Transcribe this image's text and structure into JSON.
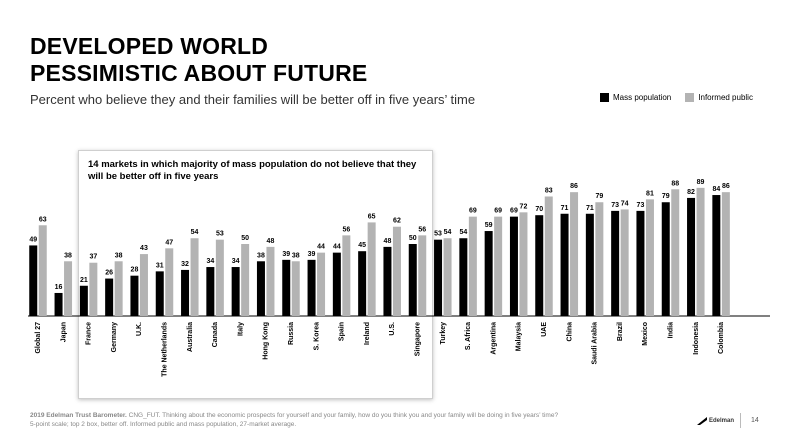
{
  "slide": {
    "title_line1": "DEVELOPED WORLD",
    "title_line2": "PESSIMISTIC ABOUT FUTURE",
    "subtitle": "Percent who believe they and their families will be better off in five years’ time",
    "callout": "14 markets in which majority of mass population do not believe that they will be better off in five years",
    "footer_source_bold": "2019 Edelman Trust Barometer.",
    "footer_source_text": " CNG_FUT. Thinking about the economic prospects for yourself and your family, how do you think you and your family will be doing in five years’ time?",
    "footer_line2": "5-point scale; top 2 box, better off. Informed public and mass population, 27-market average.",
    "brand": "Edelman",
    "page_number": "14"
  },
  "colors": {
    "mass": "#000000",
    "informed": "#b3b3b3"
  },
  "chart_data": {
    "type": "bar",
    "title": "Percent who believe they and their families will be better off in five years’ time",
    "xlabel": "",
    "ylabel": "",
    "ylim": [
      0,
      100
    ],
    "grid": false,
    "legend": "top-right",
    "categories": [
      "Global 27",
      "Japan",
      "France",
      "Germany",
      "U.K.",
      "The Netherlands",
      "Australia",
      "Canada",
      "Italy",
      "Hong Kong",
      "Russia",
      "S. Korea",
      "Spain",
      "Ireland",
      "U.S.",
      "Singapore",
      "Turkey",
      "S. Africa",
      "Argentina",
      "Malaysia",
      "UAE",
      "China",
      "Saudi Arabia",
      "Brazil",
      "Mexico",
      "India",
      "Indonesia",
      "Colombia"
    ],
    "series": [
      {
        "name": "Mass population",
        "values": [
          49,
          16,
          21,
          26,
          28,
          31,
          32,
          34,
          34,
          38,
          39,
          39,
          44,
          45,
          48,
          50,
          53,
          54,
          59,
          69,
          70,
          71,
          71,
          73,
          73,
          79,
          82,
          84
        ]
      },
      {
        "name": "Informed public",
        "values": [
          63,
          38,
          37,
          38,
          43,
          47,
          54,
          53,
          50,
          48,
          38,
          44,
          56,
          65,
          62,
          56,
          54,
          69,
          69,
          72,
          83,
          86,
          79,
          74,
          81,
          88,
          89,
          86
        ]
      }
    ]
  }
}
